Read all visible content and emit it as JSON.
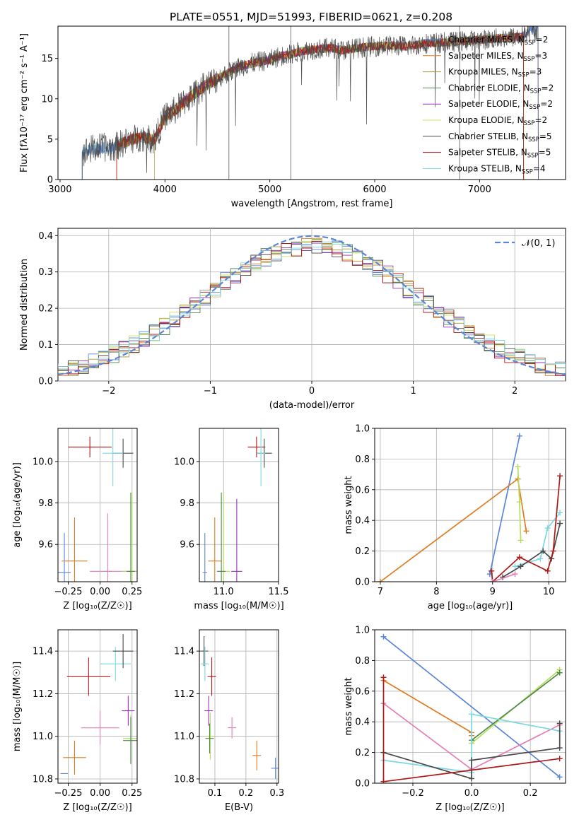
{
  "figure_title": "PLATE=0551, MJD=51993, FIBERID=0621, z=0.208",
  "colors": {
    "cm": "#5b86d8",
    "sm": "#e07b20",
    "km": "#a69635",
    "ce": "#4e8a4e",
    "se": "#9b30c0",
    "ke": "#d4e060",
    "cs": "#4a4a4a",
    "ss": "#b01818",
    "ks": "#7cd8e0",
    "pink": "#e57fb6",
    "lime": "#b6de5a",
    "gauss": "#5b86d8"
  },
  "chart_data": [
    {
      "type": "line",
      "title": "PLATE=0551, MJD=51993, FIBERID=0621, z=0.208",
      "xlabel": "wavelength [Angstrom, rest frame]",
      "ylabel": "Flux [fλ10⁻¹⁷ erg cm⁻² s⁻¹ A⁻¹]",
      "xlim": [
        2980,
        7820
      ],
      "ylim": [
        0,
        19
      ],
      "xticks": [
        "3000",
        "4000",
        "5000",
        "6000",
        "7000"
      ],
      "yticks": [
        "0",
        "5",
        "10",
        "15"
      ],
      "x": [
        3200,
        3300,
        3400,
        3500,
        3600,
        3700,
        3800,
        3900,
        4000,
        4100,
        4200,
        4300,
        4400,
        4500,
        4600,
        4700,
        4800,
        4900,
        5000,
        5100,
        5200,
        5300,
        5400,
        5500,
        5600,
        5700,
        5800,
        5900,
        6000,
        6100,
        6200,
        6300,
        6400,
        6500,
        6600,
        6700,
        6800,
        6900,
        7000,
        7100,
        7200,
        7300,
        7400,
        7500
      ],
      "y": [
        3.2,
        3.8,
        4.0,
        3.9,
        4.5,
        5.0,
        5.3,
        4.8,
        7.8,
        8.6,
        9.8,
        10.8,
        11.8,
        12.5,
        13.2,
        13.9,
        14.3,
        14.6,
        14.8,
        15.3,
        15.5,
        15.9,
        16.1,
        16.2,
        16.3,
        16.0,
        16.2,
        16.4,
        16.5,
        16.6,
        16.6,
        16.5,
        16.7,
        16.9,
        16.9,
        17.0,
        17.1,
        17.2,
        17.3,
        17.4,
        17.5,
        17.6,
        17.7,
        18.5
      ],
      "legend_position": "top-right",
      "series": [
        {
          "name": "Chabrier MILES, N",
          "sub": "SSP",
          "tail": "=2",
          "color": "cm"
        },
        {
          "name": "Salpeter MILES, N",
          "sub": "SSP",
          "tail": "=3",
          "color": "sm"
        },
        {
          "name": "Kroupa MILES, N",
          "sub": "SSP",
          "tail": "=3",
          "color": "km"
        },
        {
          "name": "Chabrier ELODIE, N",
          "sub": "SSP",
          "tail": "=2",
          "color": "ce"
        },
        {
          "name": "Salpeter ELODIE, N",
          "sub": "SSP",
          "tail": "=2",
          "color": "se"
        },
        {
          "name": "Kroupa ELODIE, N",
          "sub": "SSP",
          "tail": "=2",
          "color": "ke"
        },
        {
          "name": "Chabrier STELIB, N",
          "sub": "SSP",
          "tail": "=5",
          "color": "cs"
        },
        {
          "name": "Salpeter STELIB, N",
          "sub": "SSP",
          "tail": "=5",
          "color": "ss"
        },
        {
          "name": "Kroupa STELIB, N",
          "sub": "SSP",
          "tail": "=4",
          "color": "ks"
        }
      ],
      "grid": false
    },
    {
      "type": "line",
      "xlabel": "(data-model)/error",
      "ylabel": "Normed distribution",
      "xlim": [
        -2.5,
        2.5
      ],
      "ylim": [
        0,
        0.42
      ],
      "xticks": [
        "−2",
        "−1",
        "0",
        "1",
        "2"
      ],
      "yticks": [
        "0.0",
        "0.1",
        "0.2",
        "0.3",
        "0.4"
      ],
      "legend": "𝒩(0, 1)",
      "legend_position": "top-right",
      "grid": true
    },
    {
      "type": "scatter",
      "xlabel": "Z [log₁₀(Z/Z☉)]",
      "ylabel": "age  [log₁₀(age/yr)]",
      "xlim": [
        -0.33,
        0.29
      ],
      "ylim": [
        9.42,
        10.16
      ],
      "xticks": [
        "−0.25",
        "0.00",
        "0.25"
      ],
      "yticks": [
        "9.6",
        "9.8",
        "10.0"
      ],
      "points": [
        {
          "x": -0.28,
          "y": 9.465,
          "xerr": 0.05,
          "yerr": 0.19,
          "color": "cm"
        },
        {
          "x": -0.2,
          "y": 9.52,
          "xerr": 0.1,
          "yerr": 0.21,
          "color": "sm"
        },
        {
          "x": 0.1,
          "y": 9.47,
          "xerr": 0.18,
          "yerr": 0,
          "color": "pink"
        },
        {
          "x": 0.06,
          "y": 9.47,
          "xerr": 0,
          "yerr": 0.28,
          "color": "pink"
        },
        {
          "x": 0.25,
          "y": 9.47,
          "xerr": 0.08,
          "yerr": 0.38,
          "color": "lime"
        },
        {
          "x": 0.24,
          "y": 9.47,
          "xerr": 0,
          "yerr": 0.38,
          "color": "ce"
        },
        {
          "x": -0.08,
          "y": 10.07,
          "xerr": 0.17,
          "yerr": 0.05,
          "color": "ss"
        },
        {
          "x": 0.18,
          "y": 10.04,
          "xerr": 0.08,
          "yerr": 0.07,
          "color": "cs"
        },
        {
          "x": 0.1,
          "y": 10.04,
          "xerr": 0.08,
          "yerr": 0.16,
          "color": "ks"
        }
      ],
      "grid": true
    },
    {
      "type": "scatter",
      "xlabel": "mass [log₁₀(M/M☉)]",
      "xlim": [
        10.78,
        11.5
      ],
      "ylim": [
        9.42,
        10.16
      ],
      "xticks": [
        "11.0",
        "11.5"
      ],
      "yticks": [
        "9.6",
        "9.8",
        "10.0"
      ],
      "points": [
        {
          "x": 10.83,
          "y": 9.465,
          "xerr": 0.02,
          "yerr": 0.19,
          "color": "cm"
        },
        {
          "x": 10.92,
          "y": 9.52,
          "xerr": 0.06,
          "yerr": 0.21,
          "color": "sm"
        },
        {
          "x": 11.0,
          "y": 9.47,
          "xerr": 0.06,
          "yerr": 0.38,
          "color": "lime"
        },
        {
          "x": 10.98,
          "y": 9.47,
          "xerr": 0,
          "yerr": 0.38,
          "color": "ce"
        },
        {
          "x": 11.12,
          "y": 9.47,
          "xerr": 0.05,
          "yerr": 0.35,
          "color": "se"
        },
        {
          "x": 11.3,
          "y": 10.07,
          "xerr": 0.08,
          "yerr": 0.05,
          "color": "ss"
        },
        {
          "x": 11.37,
          "y": 10.04,
          "xerr": 0.07,
          "yerr": 0.07,
          "color": "cs"
        },
        {
          "x": 11.34,
          "y": 10.04,
          "xerr": 0,
          "yerr": 0.16,
          "color": "ks"
        }
      ],
      "grid": true
    },
    {
      "type": "line",
      "xlabel": "age  [log₁₀(age/yr)]",
      "ylabel": "mass weight",
      "xlim": [
        6.9,
        10.3
      ],
      "ylim": [
        0,
        1
      ],
      "xticks": [
        "7",
        "8",
        "9",
        "10"
      ],
      "yticks": [
        "0.0",
        "0.2",
        "0.4",
        "0.6",
        "0.8",
        "1.0"
      ],
      "series": [
        {
          "color": "cm",
          "x": [
            8.95,
            9.48
          ],
          "y": [
            0.05,
            0.95
          ]
        },
        {
          "color": "sm",
          "x": [
            7.0,
            9.45,
            9.6
          ],
          "y": [
            0.0,
            0.67,
            0.33
          ]
        },
        {
          "color": "lime",
          "x": [
            9.45,
            9.48,
            9.5
          ],
          "y": [
            0.75,
            0.52,
            0.27
          ]
        },
        {
          "color": "ks",
          "x": [
            9.4,
            9.85,
            9.98,
            10.2
          ],
          "y": [
            0.1,
            0.15,
            0.35,
            0.45
          ]
        },
        {
          "color": "cs",
          "x": [
            9.18,
            9.5,
            9.9,
            10.05,
            10.2
          ],
          "y": [
            0.03,
            0.1,
            0.2,
            0.15,
            0.38
          ]
        },
        {
          "color": "ss",
          "x": [
            8.98,
            9.0,
            9.48,
            9.98,
            10.08,
            10.2
          ],
          "y": [
            0.07,
            0.0,
            0.16,
            0.07,
            0.2,
            0.69
          ]
        },
        {
          "color": "pink",
          "x": [
            9.0,
            9.4
          ],
          "y": [
            0.0,
            0.05
          ]
        }
      ],
      "grid": true
    },
    {
      "type": "scatter",
      "xlabel": "Z [log₁₀(Z/Z☉)]",
      "ylabel": "mass [log₁₀(M/M☉)]",
      "xlim": [
        -0.33,
        0.29
      ],
      "ylim": [
        10.78,
        11.5
      ],
      "xticks": [
        "−0.25",
        "0.00",
        "0.25"
      ],
      "yticks": [
        "10.8",
        "11.0",
        "11.2",
        "11.4"
      ],
      "points": [
        {
          "x": -0.28,
          "y": 10.825,
          "xerr": 0.03,
          "yerr": 0,
          "color": "cm"
        },
        {
          "x": -0.2,
          "y": 10.9,
          "xerr": 0.09,
          "yerr": 0.08,
          "color": "sm"
        },
        {
          "x": 0.0,
          "y": 11.04,
          "xerr": 0.15,
          "yerr": 0.08,
          "color": "pink"
        },
        {
          "x": -0.09,
          "y": 11.28,
          "xerr": 0.17,
          "yerr": 0.09,
          "color": "ss"
        },
        {
          "x": 0.12,
          "y": 11.34,
          "xerr": 0.12,
          "yerr": 0.08,
          "color": "ks"
        },
        {
          "x": 0.18,
          "y": 11.4,
          "xerr": 0.08,
          "yerr": 0.08,
          "color": "cs"
        },
        {
          "x": 0.22,
          "y": 11.12,
          "xerr": 0.05,
          "yerr": 0.07,
          "color": "se"
        },
        {
          "x": 0.24,
          "y": 10.99,
          "xerr": 0.06,
          "yerr": 0.11,
          "color": "lime"
        },
        {
          "x": 0.24,
          "y": 10.98,
          "xerr": 0.06,
          "yerr": 0.11,
          "color": "ce"
        }
      ],
      "grid": true
    },
    {
      "type": "scatter",
      "xlabel": "E(B-V)",
      "xlim": [
        0.05,
        0.305
      ],
      "ylim": [
        10.78,
        11.5
      ],
      "xticks": [
        "0.1",
        "0.2",
        "0.3"
      ],
      "yticks": [
        "10.8",
        "11.0",
        "11.2",
        "11.4"
      ],
      "points": [
        {
          "x": 0.065,
          "y": 11.4,
          "xerr": 0,
          "yerr": 0.07,
          "color": "cs"
        },
        {
          "x": 0.068,
          "y": 11.34,
          "xerr": 0,
          "yerr": 0.08,
          "color": "ks"
        },
        {
          "x": 0.08,
          "y": 11.12,
          "xerr": 0,
          "yerr": 0.07,
          "color": "se"
        },
        {
          "x": 0.085,
          "y": 11.0,
          "xerr": 0,
          "yerr": 0.11,
          "color": "lime"
        },
        {
          "x": 0.083,
          "y": 10.99,
          "xerr": 0,
          "yerr": 0.07,
          "color": "ce"
        },
        {
          "x": 0.09,
          "y": 11.28,
          "xerr": 0,
          "yerr": 0.09,
          "color": "ss"
        },
        {
          "x": 0.155,
          "y": 11.04,
          "xerr": 0,
          "yerr": 0.05,
          "color": "pink"
        },
        {
          "x": 0.235,
          "y": 10.91,
          "xerr": 0,
          "yerr": 0.07,
          "color": "sm"
        },
        {
          "x": 0.295,
          "y": 10.85,
          "xerr": 0,
          "yerr": 0.05,
          "color": "cm"
        }
      ],
      "grid": true
    },
    {
      "type": "line",
      "xlabel": "Z [log₁₀(Z/Z☉)]",
      "ylabel": "mass weight",
      "xlim": [
        -0.33,
        0.32
      ],
      "ylim": [
        0,
        1
      ],
      "xticks": [
        "−0.2",
        "0.0",
        "0.2"
      ],
      "yticks": [
        "0.0",
        "0.2",
        "0.4",
        "0.6",
        "0.8",
        "1.0"
      ],
      "series": [
        {
          "color": "cm",
          "x": [
            -0.3,
            0.3
          ],
          "y": [
            0.955,
            0.04
          ]
        },
        {
          "color": "sm",
          "x": [
            -0.3,
            0.0,
            0.0
          ],
          "y": [
            0.67,
            0.33,
            0.31
          ]
        },
        {
          "color": "pink",
          "x": [
            -0.3,
            0.0,
            0.3
          ],
          "y": [
            0.52,
            0.09,
            0.38
          ]
        },
        {
          "color": "lime",
          "x": [
            0.0,
            0.3
          ],
          "y": [
            0.26,
            0.74
          ]
        },
        {
          "color": "ce",
          "x": [
            0.0,
            0.3
          ],
          "y": [
            0.28,
            0.72
          ]
        },
        {
          "color": "ks",
          "x": [
            -0.3,
            0.0,
            0.0,
            0.3
          ],
          "y": [
            0.15,
            0.07,
            0.45,
            0.34
          ]
        },
        {
          "color": "cs",
          "x": [
            -0.3,
            0.0,
            0.0,
            0.3,
            0.3
          ],
          "y": [
            0.2,
            0.03,
            0.15,
            0.23,
            0.39
          ]
        },
        {
          "color": "ss",
          "x": [
            -0.3,
            -0.3,
            0.3
          ],
          "y": [
            0.69,
            0.01,
            0.16
          ]
        }
      ],
      "grid": true
    }
  ]
}
